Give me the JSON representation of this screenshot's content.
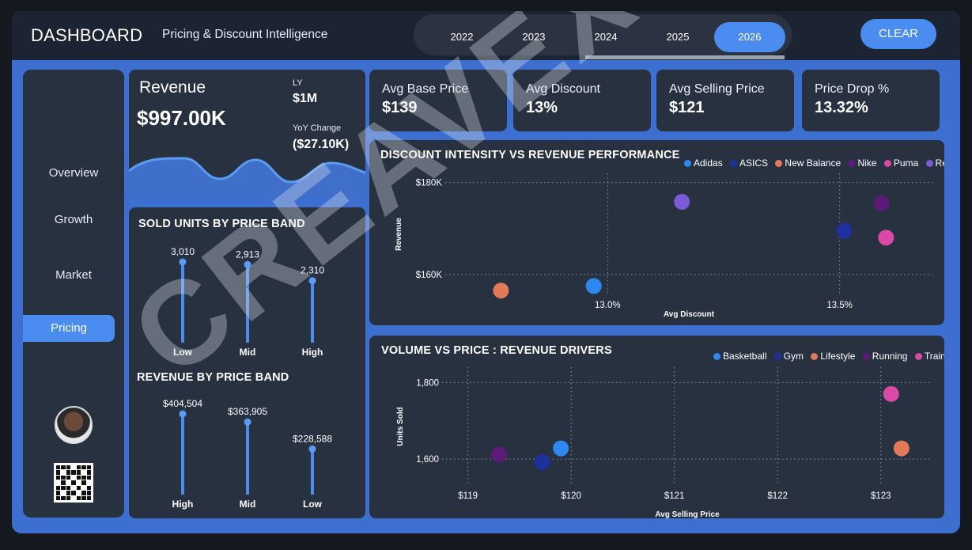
{
  "header": {
    "title": "DASHBOARD",
    "subtitle": "Pricing & Discount Intelligence",
    "years": [
      "2022",
      "2023",
      "2024",
      "2025",
      "2026"
    ],
    "active_year": "2026",
    "clear_label": "CLEAR"
  },
  "sidebar": {
    "items": [
      {
        "label": "Overview"
      },
      {
        "label": "Growth"
      },
      {
        "label": "Market"
      },
      {
        "label": "Pricing"
      }
    ],
    "active": "Pricing"
  },
  "revenue_card": {
    "label": "Revenue",
    "value": "$997.00K",
    "ly_label": "LY",
    "ly_value": "$1M",
    "yoy_label": "YoY Change",
    "yoy_value": "($27.10K)"
  },
  "kpis": [
    {
      "label": "Avg Base Price",
      "value": "$139"
    },
    {
      "label": "Avg Discount",
      "value": "13%"
    },
    {
      "label": "Avg Selling Price",
      "value": "$121"
    },
    {
      "label": "Price Drop %",
      "value": "13.32%"
    }
  ],
  "watermark": "CREAVEX TECH",
  "colors": {
    "accent": "#4a8cf0",
    "card": "#273140",
    "frame": "#3d6fd1",
    "topbar": "#1c2433"
  },
  "chart_data": [
    {
      "type": "bar",
      "id": "sold_units",
      "title": "SOLD UNITS BY PRICE BAND",
      "categories": [
        "Low",
        "Mid",
        "High"
      ],
      "values": [
        3010,
        2913,
        2310
      ],
      "labels": [
        "3,010",
        "2,913",
        "2,310"
      ],
      "ylim": [
        0,
        3010
      ]
    },
    {
      "type": "bar",
      "id": "revenue_band",
      "title": "REVENUE BY PRICE BAND",
      "categories": [
        "High",
        "Mid",
        "Low"
      ],
      "values": [
        404504,
        363905,
        228588
      ],
      "labels": [
        "$404,504",
        "$363,905",
        "$228,588"
      ],
      "ylim": [
        0,
        404504
      ]
    },
    {
      "type": "scatter",
      "id": "discount_vs_revenue",
      "title": "DISCOUNT INTENSITY VS REVENUE PERFORMANCE",
      "xlabel": "Avg Discount",
      "ylabel": "Revenue",
      "x_ticks": [
        {
          "value": 13.0,
          "label": "13.0%"
        },
        {
          "value": 13.5,
          "label": "13.5%"
        }
      ],
      "y_ticks": [
        {
          "value": 160000,
          "label": "$160K"
        },
        {
          "value": 180000,
          "label": "$180K"
        }
      ],
      "xlim": [
        12.65,
        13.7
      ],
      "ylim": [
        155500,
        182000
      ],
      "legend_position": "top-right",
      "series": [
        {
          "name": "Adidas",
          "color": "#2f87f0",
          "x": 12.97,
          "y": 157500
        },
        {
          "name": "ASICS",
          "color": "#1e2f9e",
          "x": 13.51,
          "y": 169500
        },
        {
          "name": "New Balance",
          "color": "#e07a58",
          "x": 12.77,
          "y": 156500
        },
        {
          "name": "Nike",
          "color": "#5c1b78",
          "x": 13.59,
          "y": 175500
        },
        {
          "name": "Puma",
          "color": "#d94aa6",
          "x": 13.6,
          "y": 168000
        },
        {
          "name": "Reebok",
          "color": "#7d5ad8",
          "x": 13.16,
          "y": 175800
        }
      ]
    },
    {
      "type": "scatter",
      "id": "volume_vs_price",
      "title": "VOLUME VS PRICE : REVENUE DRIVERS",
      "xlabel": "Avg Selling Price",
      "ylabel": "Units Sold",
      "x_ticks": [
        {
          "value": 119,
          "label": "$119"
        },
        {
          "value": 120,
          "label": "$120"
        },
        {
          "value": 121,
          "label": "$121"
        },
        {
          "value": 122,
          "label": "$122"
        },
        {
          "value": 123,
          "label": "$123"
        }
      ],
      "y_ticks": [
        {
          "value": 1600,
          "label": "1,600"
        },
        {
          "value": 1800,
          "label": "1,800"
        }
      ],
      "xlim": [
        118.75,
        123.5
      ],
      "ylim": [
        1530,
        1840
      ],
      "legend_position": "top-right",
      "series": [
        {
          "name": "Basketball",
          "color": "#2f87f0",
          "x": 119.9,
          "y": 1628
        },
        {
          "name": "Gym",
          "color": "#1e2f9e",
          "x": 119.72,
          "y": 1592
        },
        {
          "name": "Lifestyle",
          "color": "#e07a58",
          "x": 123.2,
          "y": 1628
        },
        {
          "name": "Running",
          "color": "#5c1b78",
          "x": 119.3,
          "y": 1612
        },
        {
          "name": "Training",
          "color": "#d94aa6",
          "x": 123.1,
          "y": 1770
        }
      ]
    }
  ]
}
